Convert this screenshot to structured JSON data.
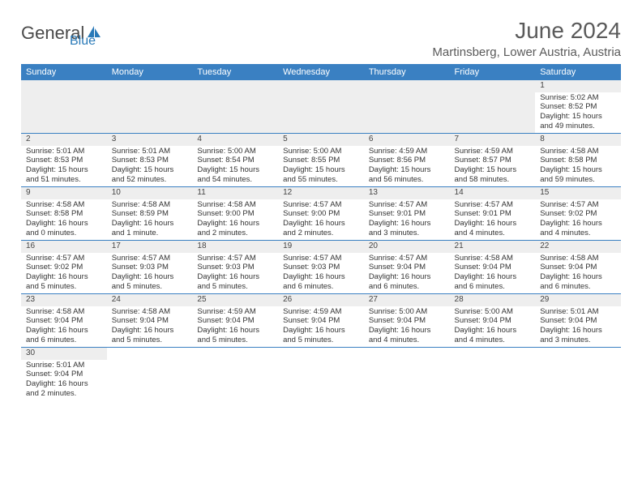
{
  "logo": {
    "general": "General",
    "blue": "Blue",
    "icon_fill": "#2a7ab8"
  },
  "header": {
    "title": "June 2024",
    "location": "Martinsberg, Lower Austria, Austria"
  },
  "colors": {
    "header_bg": "#3a80c2",
    "header_text": "#ffffff",
    "daynum_bg": "#eeeeee",
    "border": "#3a80c2",
    "text": "#333333"
  },
  "daysOfWeek": [
    "Sunday",
    "Monday",
    "Tuesday",
    "Wednesday",
    "Thursday",
    "Friday",
    "Saturday"
  ],
  "weeks": [
    [
      null,
      null,
      null,
      null,
      null,
      null,
      {
        "n": "1",
        "sr": "5:02 AM",
        "ss": "8:52 PM",
        "dl": "15 hours and 49 minutes."
      }
    ],
    [
      {
        "n": "2",
        "sr": "5:01 AM",
        "ss": "8:53 PM",
        "dl": "15 hours and 51 minutes."
      },
      {
        "n": "3",
        "sr": "5:01 AM",
        "ss": "8:53 PM",
        "dl": "15 hours and 52 minutes."
      },
      {
        "n": "4",
        "sr": "5:00 AM",
        "ss": "8:54 PM",
        "dl": "15 hours and 54 minutes."
      },
      {
        "n": "5",
        "sr": "5:00 AM",
        "ss": "8:55 PM",
        "dl": "15 hours and 55 minutes."
      },
      {
        "n": "6",
        "sr": "4:59 AM",
        "ss": "8:56 PM",
        "dl": "15 hours and 56 minutes."
      },
      {
        "n": "7",
        "sr": "4:59 AM",
        "ss": "8:57 PM",
        "dl": "15 hours and 58 minutes."
      },
      {
        "n": "8",
        "sr": "4:58 AM",
        "ss": "8:58 PM",
        "dl": "15 hours and 59 minutes."
      }
    ],
    [
      {
        "n": "9",
        "sr": "4:58 AM",
        "ss": "8:58 PM",
        "dl": "16 hours and 0 minutes."
      },
      {
        "n": "10",
        "sr": "4:58 AM",
        "ss": "8:59 PM",
        "dl": "16 hours and 1 minute."
      },
      {
        "n": "11",
        "sr": "4:58 AM",
        "ss": "9:00 PM",
        "dl": "16 hours and 2 minutes."
      },
      {
        "n": "12",
        "sr": "4:57 AM",
        "ss": "9:00 PM",
        "dl": "16 hours and 2 minutes."
      },
      {
        "n": "13",
        "sr": "4:57 AM",
        "ss": "9:01 PM",
        "dl": "16 hours and 3 minutes."
      },
      {
        "n": "14",
        "sr": "4:57 AM",
        "ss": "9:01 PM",
        "dl": "16 hours and 4 minutes."
      },
      {
        "n": "15",
        "sr": "4:57 AM",
        "ss": "9:02 PM",
        "dl": "16 hours and 4 minutes."
      }
    ],
    [
      {
        "n": "16",
        "sr": "4:57 AM",
        "ss": "9:02 PM",
        "dl": "16 hours and 5 minutes."
      },
      {
        "n": "17",
        "sr": "4:57 AM",
        "ss": "9:03 PM",
        "dl": "16 hours and 5 minutes."
      },
      {
        "n": "18",
        "sr": "4:57 AM",
        "ss": "9:03 PM",
        "dl": "16 hours and 5 minutes."
      },
      {
        "n": "19",
        "sr": "4:57 AM",
        "ss": "9:03 PM",
        "dl": "16 hours and 6 minutes."
      },
      {
        "n": "20",
        "sr": "4:57 AM",
        "ss": "9:04 PM",
        "dl": "16 hours and 6 minutes."
      },
      {
        "n": "21",
        "sr": "4:58 AM",
        "ss": "9:04 PM",
        "dl": "16 hours and 6 minutes."
      },
      {
        "n": "22",
        "sr": "4:58 AM",
        "ss": "9:04 PM",
        "dl": "16 hours and 6 minutes."
      }
    ],
    [
      {
        "n": "23",
        "sr": "4:58 AM",
        "ss": "9:04 PM",
        "dl": "16 hours and 6 minutes."
      },
      {
        "n": "24",
        "sr": "4:58 AM",
        "ss": "9:04 PM",
        "dl": "16 hours and 5 minutes."
      },
      {
        "n": "25",
        "sr": "4:59 AM",
        "ss": "9:04 PM",
        "dl": "16 hours and 5 minutes."
      },
      {
        "n": "26",
        "sr": "4:59 AM",
        "ss": "9:04 PM",
        "dl": "16 hours and 5 minutes."
      },
      {
        "n": "27",
        "sr": "5:00 AM",
        "ss": "9:04 PM",
        "dl": "16 hours and 4 minutes."
      },
      {
        "n": "28",
        "sr": "5:00 AM",
        "ss": "9:04 PM",
        "dl": "16 hours and 4 minutes."
      },
      {
        "n": "29",
        "sr": "5:01 AM",
        "ss": "9:04 PM",
        "dl": "16 hours and 3 minutes."
      }
    ],
    [
      {
        "n": "30",
        "sr": "5:01 AM",
        "ss": "9:04 PM",
        "dl": "16 hours and 2 minutes."
      },
      null,
      null,
      null,
      null,
      null,
      null
    ]
  ],
  "labels": {
    "sunrise": "Sunrise:",
    "sunset": "Sunset:",
    "daylight": "Daylight:"
  }
}
